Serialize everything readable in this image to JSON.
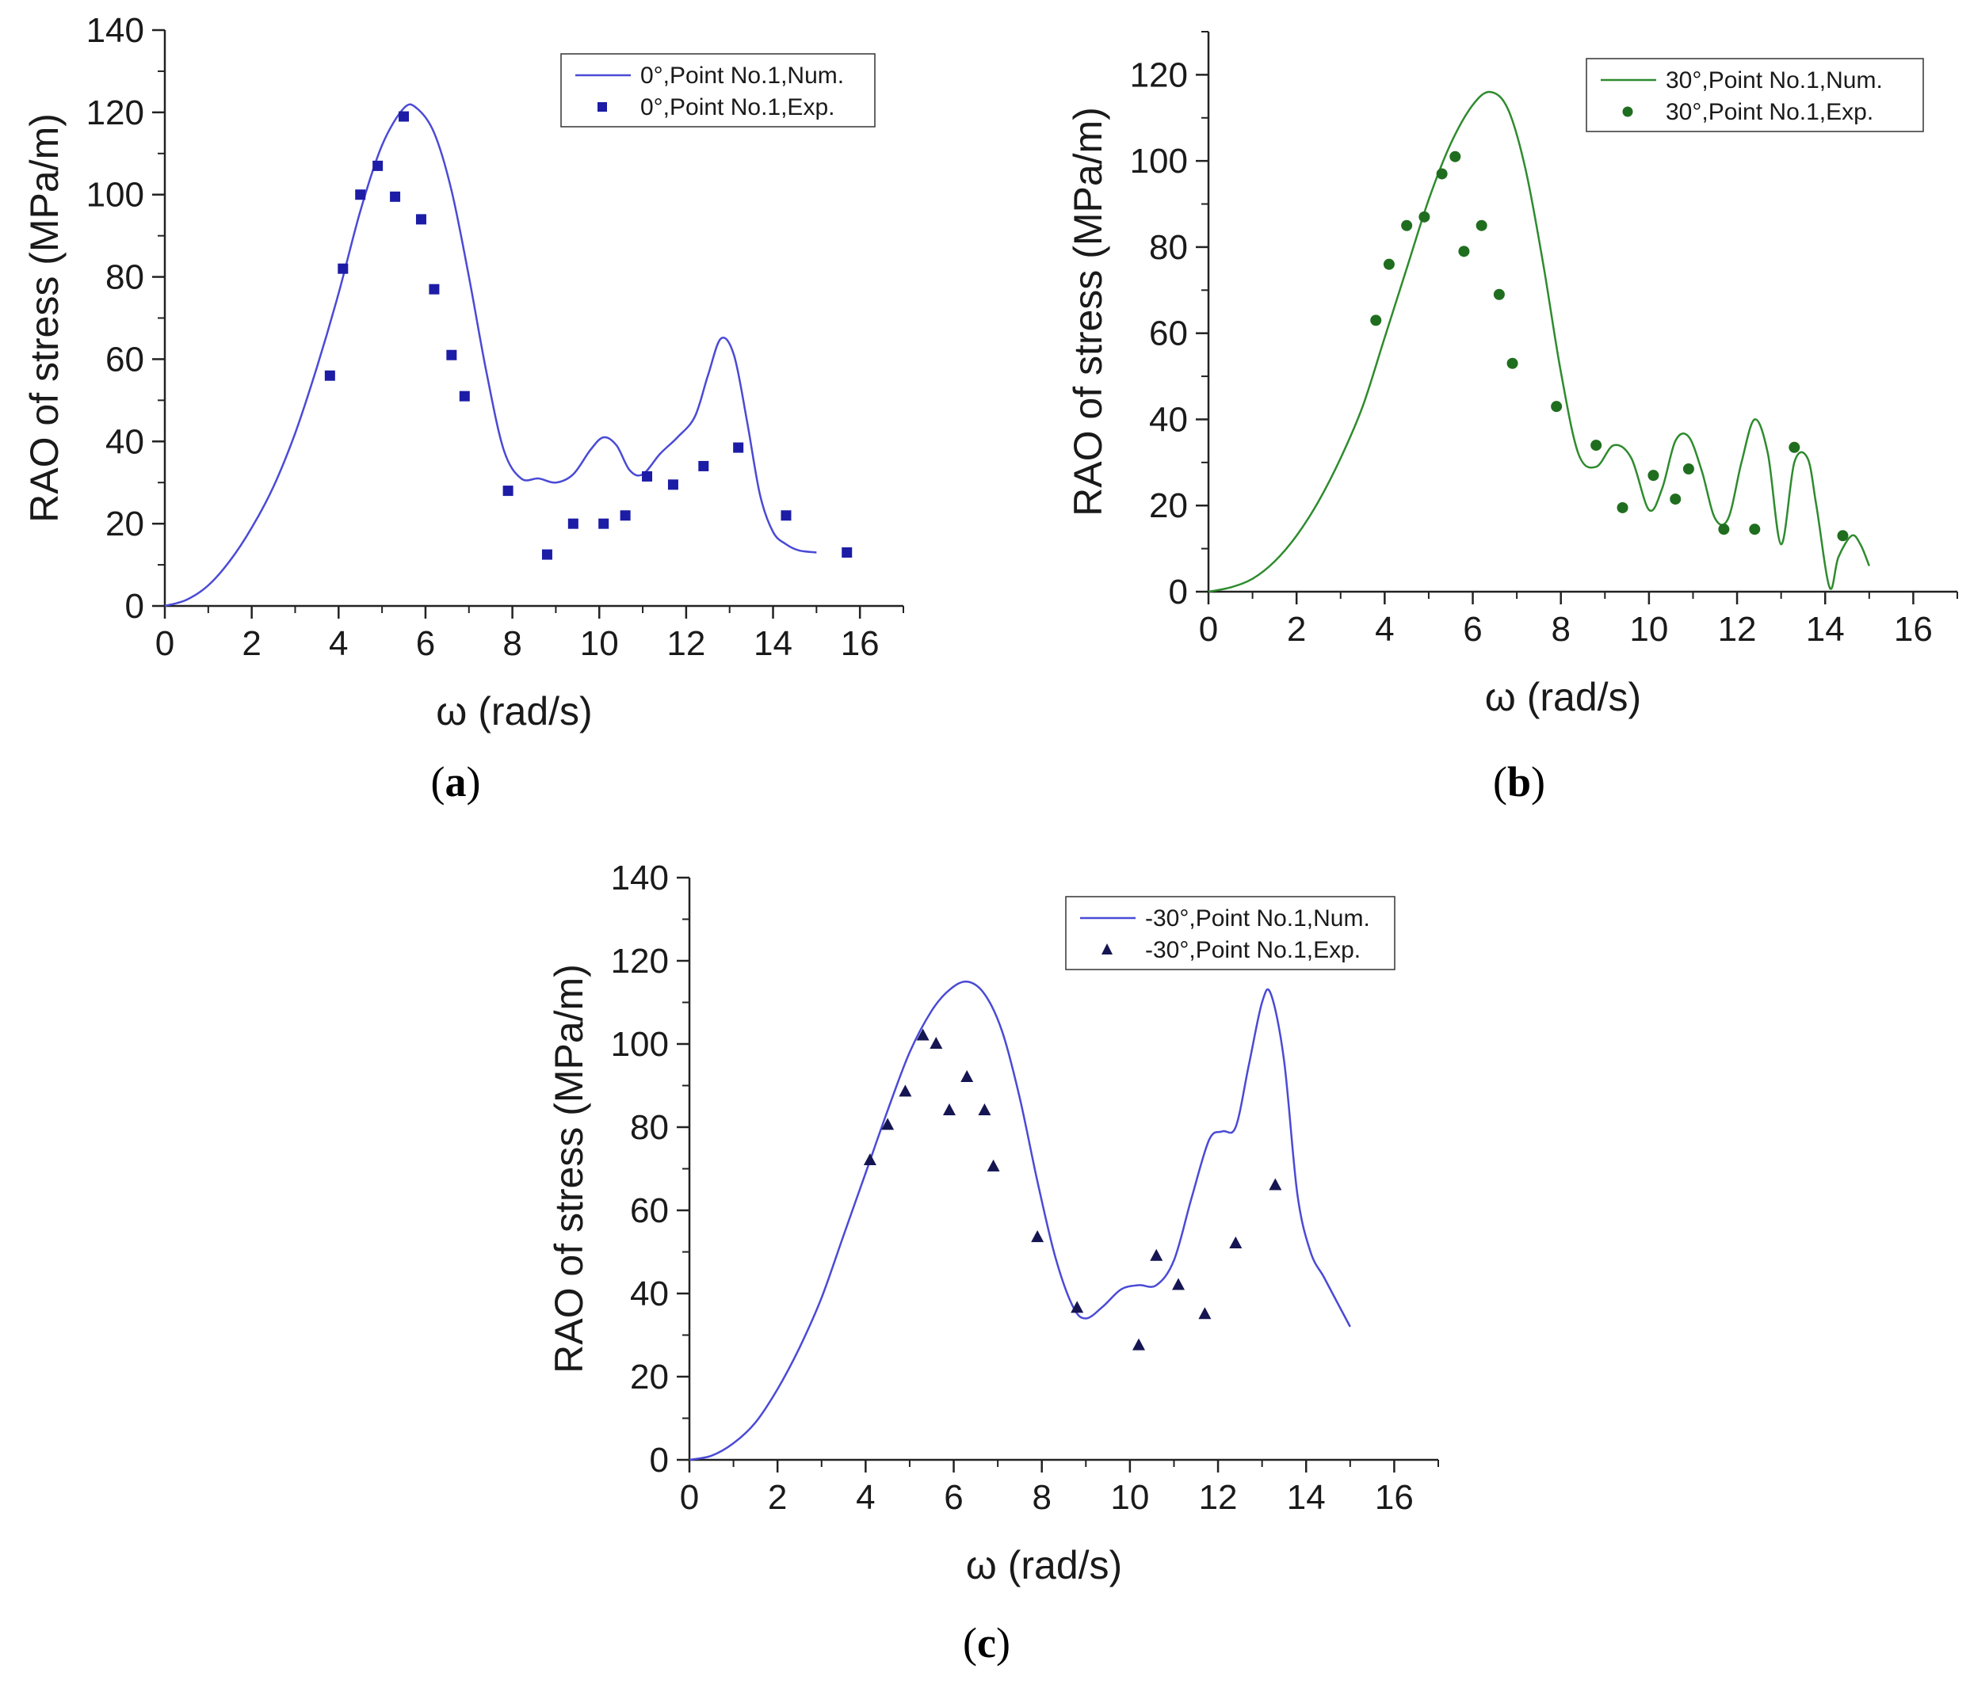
{
  "chart_data": [
    {
      "type": "line",
      "panel_label": "a",
      "xlabel": "ω (rad/s)",
      "ylabel": "RAO of stress (MPa/m)",
      "xlim": [
        0,
        17
      ],
      "ylim": [
        0,
        140
      ],
      "xticks": [
        0,
        2,
        4,
        6,
        8,
        10,
        12,
        14,
        16
      ],
      "yticks": [
        0,
        20,
        40,
        60,
        80,
        100,
        120,
        140
      ],
      "legend_position": "top-right",
      "series": [
        {
          "name": "0°,Point No.1,Num.",
          "kind": "line",
          "color": "#4a4ad6",
          "x": [
            0,
            0.5,
            1,
            1.5,
            2,
            2.5,
            3,
            3.5,
            4,
            4.5,
            5,
            5.5,
            5.8,
            6.2,
            6.6,
            7,
            7.4,
            7.8,
            8.2,
            8.6,
            9,
            9.4,
            9.8,
            10.1,
            10.4,
            10.7,
            11,
            11.4,
            11.8,
            12.2,
            12.5,
            12.8,
            13.1,
            13.4,
            13.7,
            14,
            14.3,
            14.6,
            15
          ],
          "y": [
            0,
            1.5,
            5,
            11,
            19,
            29,
            42,
            58,
            76,
            96,
            112,
            121,
            121,
            115,
            101,
            80,
            57,
            38,
            31,
            31,
            30,
            32,
            38,
            41,
            39,
            33,
            32,
            37,
            41,
            46,
            56,
            65,
            61,
            45,
            27,
            18,
            15,
            13.5,
            13
          ]
        },
        {
          "name": "0°,Point No.1,Exp.",
          "kind": "scatter",
          "marker": "square",
          "color": "#1c1ca6",
          "x": [
            3.8,
            4.1,
            4.5,
            4.9,
            5.3,
            5.5,
            5.9,
            6.2,
            6.6,
            6.9,
            7.9,
            8.8,
            9.4,
            10.1,
            10.6,
            11.1,
            11.7,
            12.4,
            13.2,
            14.3,
            15.7
          ],
          "y": [
            56,
            82,
            100,
            107,
            99.5,
            119,
            94,
            77,
            61,
            51,
            28,
            12.5,
            20,
            20,
            22,
            31.5,
            29.5,
            34,
            38.5,
            22,
            13
          ]
        }
      ]
    },
    {
      "type": "line",
      "panel_label": "b",
      "xlabel": "ω (rad/s)",
      "ylabel": "RAO of stress (MPa/m)",
      "xlim": [
        0,
        17
      ],
      "ylim": [
        0,
        130
      ],
      "xticks": [
        0,
        2,
        4,
        6,
        8,
        10,
        12,
        14,
        16
      ],
      "yticks": [
        0,
        20,
        40,
        60,
        80,
        100,
        120
      ],
      "legend_position": "top-right",
      "series": [
        {
          "name": "30°,Point No.1,Num.",
          "kind": "line",
          "color": "#2e8b2e",
          "x": [
            0,
            0.5,
            1,
            1.5,
            2,
            2.5,
            3,
            3.5,
            4,
            4.5,
            5,
            5.5,
            6,
            6.4,
            6.8,
            7.2,
            7.6,
            8,
            8.4,
            8.8,
            9.2,
            9.6,
            10,
            10.3,
            10.6,
            10.9,
            11.2,
            11.5,
            11.8,
            12.1,
            12.4,
            12.7,
            13,
            13.3,
            13.6,
            13.8,
            14.1,
            14.3,
            14.6,
            14.8,
            15
          ],
          "y": [
            0,
            1,
            3,
            7,
            13,
            21,
            31,
            43,
            59,
            75,
            91,
            104,
            113,
            116,
            112,
            98,
            76,
            51,
            32,
            29,
            34,
            31,
            19,
            24,
            35,
            36,
            28,
            17,
            17,
            30,
            40,
            32,
            11,
            30,
            31,
            20,
            1,
            8,
            13,
            11,
            6
          ]
        },
        {
          "name": "30°,Point No.1,Exp.",
          "kind": "scatter",
          "marker": "circle",
          "color": "#1f6e1f",
          "x": [
            3.8,
            4.1,
            4.5,
            4.9,
            5.3,
            5.6,
            5.8,
            6.2,
            6.6,
            6.9,
            7.9,
            8.8,
            9.4,
            10.1,
            10.6,
            10.9,
            11.7,
            12.4,
            13.3,
            14.4
          ],
          "y": [
            63,
            76,
            85,
            87,
            97,
            101,
            79,
            85,
            69,
            53,
            43,
            34,
            19.5,
            27,
            21.5,
            28.5,
            14.5,
            14.5,
            33.5,
            13
          ]
        }
      ]
    },
    {
      "type": "line",
      "panel_label": "c",
      "xlabel": "ω (rad/s)",
      "ylabel": "RAO of stress (MPa/m)",
      "xlim": [
        0,
        17
      ],
      "ylim": [
        0,
        140
      ],
      "xticks": [
        0,
        2,
        4,
        6,
        8,
        10,
        12,
        14,
        16
      ],
      "yticks": [
        0,
        20,
        40,
        60,
        80,
        100,
        120,
        140
      ],
      "legend_position": "top-right",
      "series": [
        {
          "name": "-30°,Point No.1,Num.",
          "kind": "line",
          "color": "#4a4ad6",
          "x": [
            0,
            0.5,
            1,
            1.5,
            2,
            2.5,
            3,
            3.5,
            4,
            4.5,
            5,
            5.5,
            5.9,
            6.3,
            6.7,
            7.1,
            7.5,
            7.9,
            8.3,
            8.7,
            9,
            9.4,
            9.8,
            10.2,
            10.6,
            11,
            11.4,
            11.8,
            12.1,
            12.4,
            12.7,
            13,
            13.2,
            13.5,
            13.8,
            14.1,
            14.4,
            14.7,
            15
          ],
          "y": [
            0,
            1,
            4,
            9,
            17,
            27,
            39,
            54,
            69,
            84,
            98,
            108,
            113,
            115,
            112,
            103,
            87,
            67,
            49,
            37,
            34,
            37,
            41,
            42,
            42,
            48,
            63,
            77,
            79,
            80,
            95,
            110,
            112,
            96,
            64,
            50,
            44,
            38,
            32
          ]
        },
        {
          "name": "-30°,Point No.1,Exp.",
          "kind": "scatter",
          "marker": "triangle",
          "color": "#151552",
          "x": [
            4.1,
            4.5,
            4.9,
            5.3,
            5.6,
            5.9,
            6.3,
            6.7,
            6.9,
            7.9,
            8.8,
            10.2,
            10.6,
            11.1,
            11.7,
            12.4,
            13.3
          ],
          "y": [
            72,
            80.5,
            88.5,
            102,
            100,
            84,
            92,
            84,
            70.5,
            53.5,
            36.5,
            27.5,
            49,
            42,
            35,
            52,
            66
          ]
        }
      ]
    }
  ]
}
